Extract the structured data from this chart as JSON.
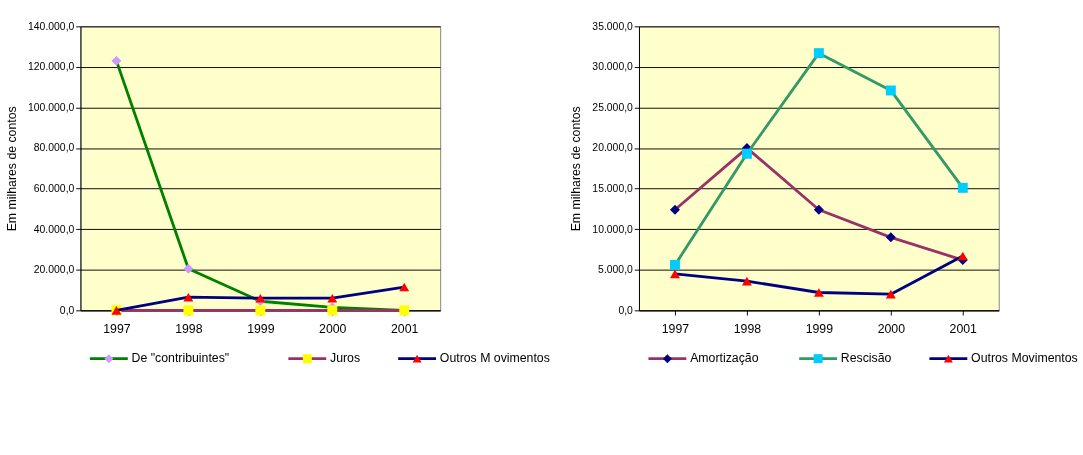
{
  "chart_data": [
    {
      "type": "line",
      "ylabel": "Em milhares de contos",
      "categories": [
        "1997",
        "1998",
        "1999",
        "2000",
        "2001"
      ],
      "ylim": [
        0,
        140000
      ],
      "yticks": [
        {
          "value": 0,
          "label": "0,0"
        },
        {
          "value": 20000,
          "label": "20.000,0"
        },
        {
          "value": 40000,
          "label": "40.000,0"
        },
        {
          "value": 60000,
          "label": "60.000,0"
        },
        {
          "value": 80000,
          "label": "80.000,0"
        },
        {
          "value": 100000,
          "label": "100.000,0"
        },
        {
          "value": 120000,
          "label": "120.000,0"
        },
        {
          "value": 140000,
          "label": "140.000,0"
        }
      ],
      "grid": "y",
      "legend": "bottom",
      "series": [
        {
          "name": "De \"contribuintes\"",
          "color": "#008000",
          "marker": "diamond",
          "colors": [
            "#cc99ff",
            "#cc99ff",
            "#cc99ff",
            "#cc99ff",
            "#cc99ff"
          ],
          "values": [
            123000,
            20500,
            4500,
            1500,
            0
          ]
        },
        {
          "name": "Juros",
          "color": "#993366",
          "marker": "square",
          "colors": [
            "#ffff00",
            "#ffff00",
            "#ffff00",
            "#ffff00",
            "#ffff00"
          ],
          "values": [
            0,
            0,
            0,
            0,
            0
          ]
        },
        {
          "name": "Outros M ovimentos",
          "color": "#000080",
          "marker": "triangle",
          "colors": [
            "#ff0000",
            "#ff0000",
            "#ff0000",
            "#ff0000",
            "#ff0000"
          ],
          "values": [
            0,
            6500,
            6000,
            6000,
            11500
          ]
        }
      ]
    },
    {
      "type": "line",
      "ylabel": "Em milhares de contos",
      "categories": [
        "1997",
        "1998",
        "1999",
        "2000",
        "2001"
      ],
      "ylim": [
        0,
        35000
      ],
      "yticks": [
        {
          "value": 0,
          "label": "0,0"
        },
        {
          "value": 5000,
          "label": "5.000,0"
        },
        {
          "value": 10000,
          "label": "10.000,0"
        },
        {
          "value": 15000,
          "label": "15.000,0"
        },
        {
          "value": 20000,
          "label": "20.000,0"
        },
        {
          "value": 25000,
          "label": "25.000,0"
        },
        {
          "value": 30000,
          "label": "30.000,0"
        },
        {
          "value": 35000,
          "label": "35.000,0"
        }
      ],
      "grid": "y",
      "legend": "bottom",
      "series": [
        {
          "name": "Amortização",
          "color": "#993366",
          "marker": "diamond",
          "colors": [
            "#000080",
            "#000080",
            "#000080",
            "#000080",
            "#000080"
          ],
          "values": [
            12400,
            20000,
            12400,
            9000,
            6200
          ]
        },
        {
          "name": "Rescisão",
          "color": "#339966",
          "marker": "square",
          "colors": [
            "#00ccff",
            "#00ccff",
            "#00ccff",
            "#00ccff",
            "#00ccff"
          ],
          "values": [
            5600,
            19300,
            31700,
            27100,
            15100
          ]
        },
        {
          "name": "Outros Movimentos",
          "color": "#000080",
          "marker": "triangle",
          "colors": [
            "#ff0000",
            "#ff0000",
            "#ff0000",
            "#ff0000",
            "#ff0000"
          ],
          "values": [
            4500,
            3600,
            2200,
            2000,
            6700
          ]
        }
      ]
    }
  ]
}
